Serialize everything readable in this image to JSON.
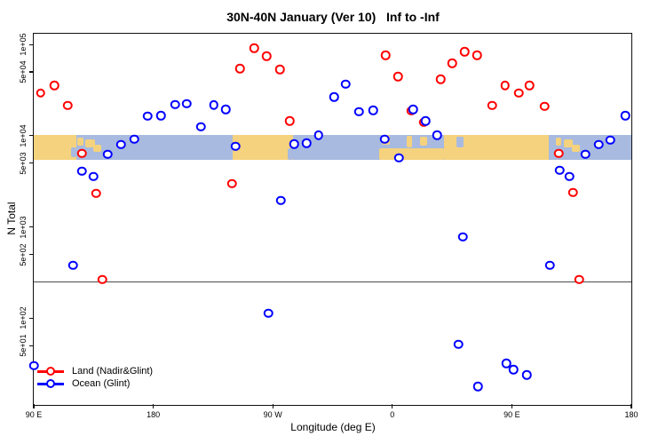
{
  "window": {
    "background": "#FFFFFF"
  },
  "chart_data": {
    "type": "scatter",
    "title": "30N-40N January (Ver 10)   Inf to -Inf",
    "xlabel": "Longitude (deg E)",
    "ylabel": "N Total",
    "grid": false,
    "legend_position": "bottom-left",
    "x_axis": {
      "range_deg_e": [
        90,
        540
      ],
      "ticks": [
        {
          "lon": 90,
          "label": "90 E"
        },
        {
          "lon": 180,
          "label": "180"
        },
        {
          "lon": 270,
          "label": "90 W"
        },
        {
          "lon": 360,
          "label": "0"
        },
        {
          "lon": 450,
          "label": "90 E"
        },
        {
          "lon": 540,
          "label": "180"
        }
      ]
    },
    "y_axis": {
      "scale": "log10",
      "range": [
        11.5,
        131000
      ],
      "ticks": [
        {
          "value": 100000,
          "label": "1e+05"
        },
        {
          "value": 50000,
          "label": "5e+04"
        },
        {
          "value": 10000,
          "label": "1e+04"
        },
        {
          "value": 5000,
          "label": "5e+03"
        },
        {
          "value": 1000,
          "label": "1e+03"
        },
        {
          "value": 500,
          "label": "5e+02"
        },
        {
          "value": 100,
          "label": "1e+02"
        },
        {
          "value": 50,
          "label": "5e+01"
        }
      ]
    },
    "reference_line": {
      "value": 256,
      "color": "#4D4D4D"
    },
    "map_band": {
      "top_value": 10300,
      "bottom_value": 5400,
      "land_color": "#F5D27D",
      "ocean_color": "#A8BADF",
      "segments": [
        [
          90,
          122,
          0,
          1,
          "land"
        ],
        [
          118,
          122,
          0.5,
          0.9,
          "ocean"
        ],
        [
          122,
          240,
          0,
          1,
          "ocean"
        ],
        [
          123,
          127.5,
          0.12,
          0.42,
          "land"
        ],
        [
          129,
          136,
          0.18,
          0.5,
          "land"
        ],
        [
          135,
          141,
          0.38,
          0.68,
          "land"
        ],
        [
          240,
          285,
          0,
          1,
          "land"
        ],
        [
          281,
          285,
          0.55,
          1,
          "ocean"
        ],
        [
          285,
          350,
          0,
          1,
          "ocean"
        ],
        [
          350,
          399,
          0,
          1,
          "ocean"
        ],
        [
          350,
          399,
          0.52,
          1,
          "land"
        ],
        [
          352,
          358,
          0,
          0.4,
          "land"
        ],
        [
          371,
          375,
          0.05,
          0.5,
          "land"
        ],
        [
          381,
          386,
          0.1,
          0.45,
          "land"
        ],
        [
          399,
          478,
          0,
          1,
          "land"
        ],
        [
          408.5,
          413.5,
          0.08,
          0.5,
          "ocean"
        ],
        [
          478,
          540,
          0,
          1,
          "ocean"
        ],
        [
          483,
          487.5,
          0.12,
          0.42,
          "land"
        ],
        [
          489,
          496,
          0.18,
          0.5,
          "land"
        ],
        [
          495,
          501,
          0.38,
          0.68,
          "land"
        ]
      ]
    },
    "series": [
      {
        "name": "Land (Nadir&Glint)",
        "color": "#FF0000",
        "points": [
          [
            95.3,
            29300
          ],
          [
            105.4,
            35700
          ],
          [
            115.4,
            21400
          ],
          [
            126.1,
            6390
          ],
          [
            136.8,
            2340
          ],
          [
            141.5,
            267
          ],
          [
            239.1,
            2990
          ],
          [
            245.1,
            54700
          ],
          [
            255.8,
            91500
          ],
          [
            265.2,
            74800
          ],
          [
            275.2,
            53500
          ],
          [
            282.6,
            14600
          ],
          [
            354.8,
            76400
          ],
          [
            364.2,
            44700
          ],
          [
            374.2,
            18700
          ],
          [
            383.6,
            14000
          ],
          [
            396.3,
            41800
          ],
          [
            405.0,
            62500
          ],
          [
            414.3,
            83600
          ],
          [
            423.7,
            76400
          ],
          [
            435.0,
            21400
          ],
          [
            445.0,
            35700
          ],
          [
            455.1,
            29300
          ],
          [
            463.1,
            35700
          ],
          [
            474.5,
            20900
          ],
          [
            485.2,
            6390
          ],
          [
            495.9,
            2390
          ],
          [
            500.6,
            267
          ]
        ]
      },
      {
        "name": "Ocean (Glint)",
        "color": "#0000FF",
        "points": [
          [
            90.0,
            30.5
          ],
          [
            119.4,
            383
          ],
          [
            126.1,
            4090
          ],
          [
            134.8,
            3570
          ],
          [
            145.5,
            6250
          ],
          [
            155.5,
            8000
          ],
          [
            165.6,
            9140
          ],
          [
            175.6,
            16400
          ],
          [
            185.6,
            16700
          ],
          [
            196.3,
            21900
          ],
          [
            205.0,
            22400
          ],
          [
            215.7,
            12500
          ],
          [
            225.7,
            21700
          ],
          [
            234.4,
            19500
          ],
          [
            241.8,
            7640
          ],
          [
            266.5,
            114
          ],
          [
            275.9,
            1950
          ],
          [
            285.9,
            8080
          ],
          [
            295.3,
            8260
          ],
          [
            304.6,
            10200
          ],
          [
            316.0,
            26700
          ],
          [
            324.7,
            36600
          ],
          [
            334.7,
            18300
          ],
          [
            345.4,
            18900
          ],
          [
            354.1,
            9140
          ],
          [
            364.8,
            5710
          ],
          [
            375.5,
            19500
          ],
          [
            384.9,
            14600
          ],
          [
            393.6,
            10200
          ],
          [
            409.6,
            52
          ],
          [
            413.0,
            782
          ],
          [
            424.3,
            17.9
          ],
          [
            445.7,
            32
          ],
          [
            451.1,
            27.4
          ],
          [
            461.1,
            23.9
          ],
          [
            478.5,
            383
          ],
          [
            485.9,
            4180
          ],
          [
            493.2,
            3570
          ],
          [
            505.3,
            6250
          ],
          [
            515.3,
            8000
          ],
          [
            524.0,
            8940
          ],
          [
            535.3,
            16700
          ]
        ]
      }
    ]
  }
}
